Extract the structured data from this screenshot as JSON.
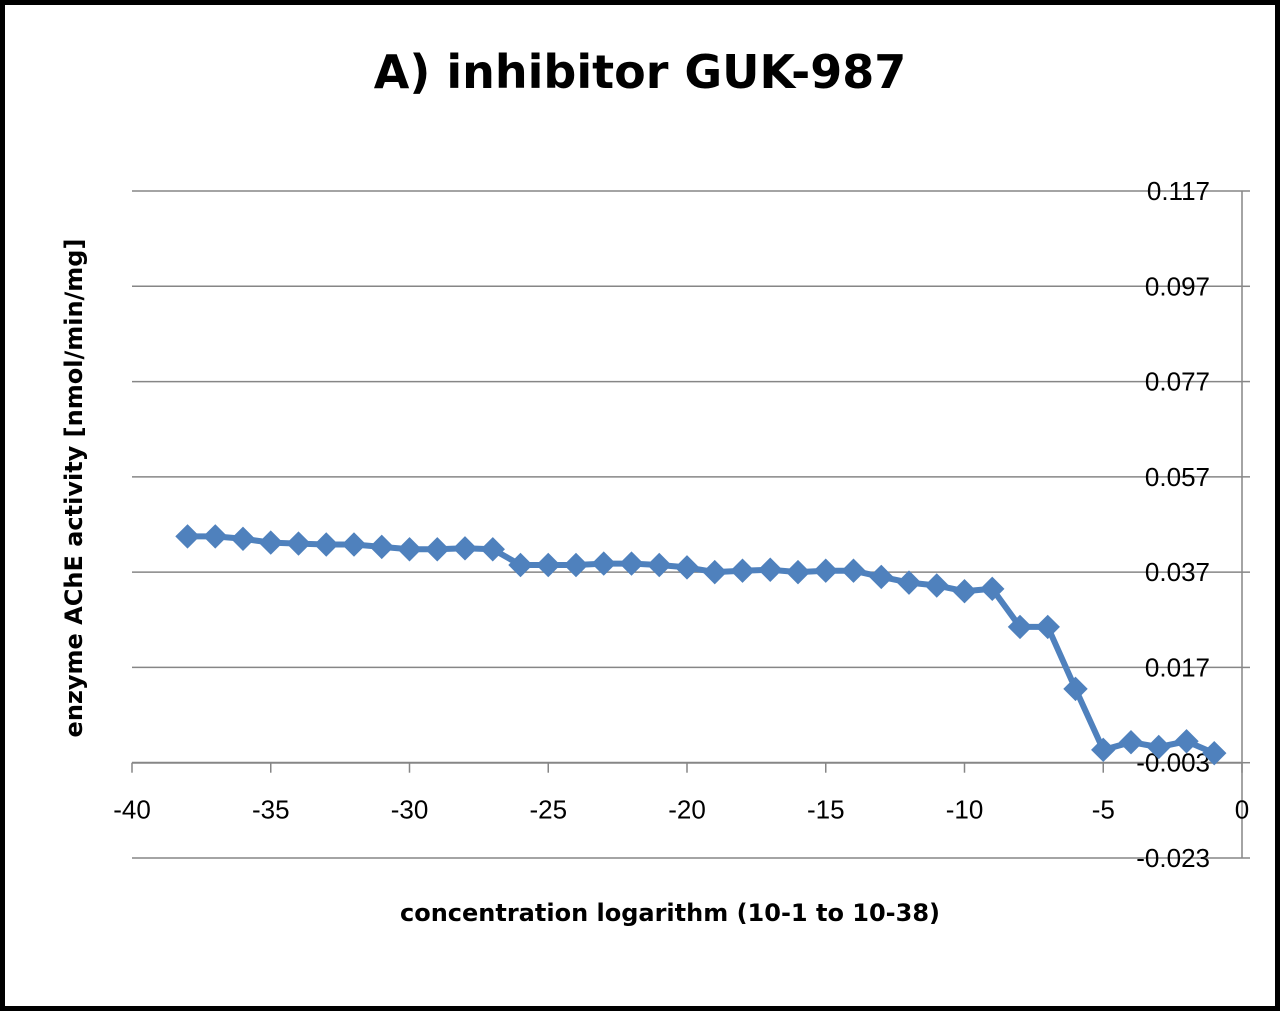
{
  "chart_data": {
    "type": "line",
    "title": "A) inhibitor GUK-987",
    "xlabel": "concentration logarithm (10-1 to 10-38)",
    "ylabel": "enzyme AChE activity [nmol/min/mg]",
    "xlim": [
      -40,
      0
    ],
    "ylim": [
      -0.023,
      0.117
    ],
    "x_ticks": [
      -40,
      -35,
      -30,
      -25,
      -20,
      -15,
      -10,
      -5,
      0
    ],
    "x_tick_labels": [
      "-40",
      "-35",
      "-30",
      "-25",
      "-20",
      "-15",
      "-10",
      "-5",
      "0"
    ],
    "y_ticks": [
      0.117,
      0.097,
      0.077,
      0.057,
      0.037,
      0.017,
      -0.003,
      -0.023
    ],
    "y_tick_labels": [
      "0.117",
      "0.097",
      "0.077",
      "0.057",
      "0.037",
      "0.017",
      "-0.003",
      "-0.023"
    ],
    "x_axis_crosses_at": -0.003,
    "y_axis_position": "right",
    "grid": "horizontal",
    "legend": "none",
    "series": [
      {
        "color": "#4f81bd",
        "marker": "diamond",
        "x": [
          -38,
          -37,
          -36,
          -35,
          -34,
          -33,
          -32,
          -31,
          -30,
          -29,
          -28,
          -27,
          -26,
          -25,
          -24,
          -23,
          -22,
          -21,
          -20,
          -19,
          -18,
          -17,
          -16,
          -15,
          -14,
          -13,
          -12,
          -11,
          -10,
          -9,
          -8,
          -7,
          -6,
          -5,
          -4,
          -3,
          -2,
          -1
        ],
        "y": [
          0.0445,
          0.0445,
          0.044,
          0.0432,
          0.043,
          0.0428,
          0.0428,
          0.0423,
          0.0418,
          0.0418,
          0.042,
          0.0418,
          0.0385,
          0.0385,
          0.0385,
          0.0388,
          0.0388,
          0.0385,
          0.038,
          0.037,
          0.0373,
          0.0375,
          0.037,
          0.0373,
          0.0373,
          0.036,
          0.0348,
          0.0342,
          0.033,
          0.0335,
          0.0255,
          0.0255,
          0.0125,
          -0.0003,
          0.0013,
          0.0003,
          0.0015,
          -0.001
        ]
      }
    ]
  }
}
